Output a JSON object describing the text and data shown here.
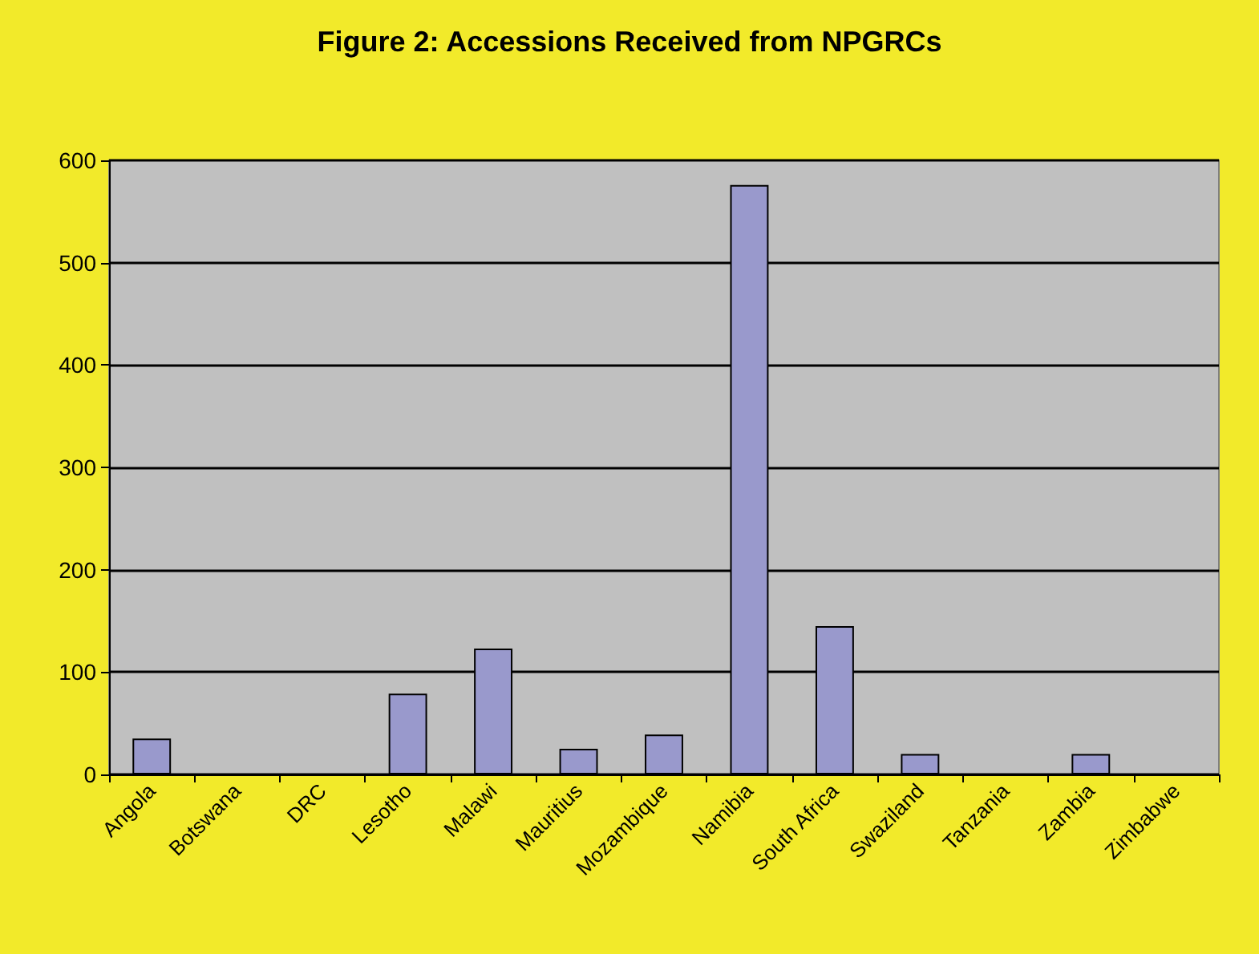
{
  "chart_data": {
    "type": "bar",
    "title": "Figure 2: Accessions Received from NPGRCs",
    "categories": [
      "Angola",
      "Botswana",
      "DRC",
      "Lesotho",
      "Malawi",
      "Mauritius",
      "Mozambique",
      "Namibia",
      "South Africa",
      "Swaziland",
      "Tanzania",
      "Zambia",
      "Zimbabwe"
    ],
    "values": [
      35,
      0,
      0,
      79,
      123,
      25,
      39,
      576,
      145,
      20,
      0,
      20,
      0
    ],
    "color": "#9999cc",
    "ylim": [
      0,
      600
    ],
    "yticks": [
      0,
      100,
      200,
      300,
      400,
      500,
      600
    ],
    "grid": "y"
  }
}
